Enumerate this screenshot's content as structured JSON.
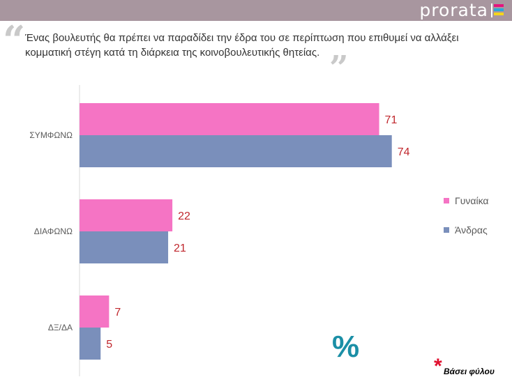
{
  "header": {
    "brand": "prorata"
  },
  "question": "Ένας βουλευτής θα πρέπει να παραδίδει την έδρα του σε περίπτωση που επιθυμεί να αλλάξει κομματική στέγη κατά τη διάρκεια της κοινοβουλευτικής θητείας.",
  "colors": {
    "women": "#f574c4",
    "men": "#7a8fbb",
    "label": "#c0272d",
    "percent": "#1b8fa6",
    "header": "#a8969f"
  },
  "percent_sign": "%",
  "footnote": "Βάσει φύλου",
  "footnote_mark": "*",
  "chart_data": {
    "type": "bar",
    "orientation": "horizontal",
    "categories": [
      "ΣΥΜΦΩΝΩ",
      "ΔΙΑΦΩΝΩ",
      "ΔΞ/ΔΑ"
    ],
    "series": [
      {
        "name": "Γυναίκα",
        "values": [
          71,
          22,
          7
        ]
      },
      {
        "name": "Άνδρας",
        "values": [
          74,
          21,
          5
        ]
      }
    ],
    "xlim": [
      0,
      100
    ],
    "data_labels": true,
    "legend": "right"
  }
}
